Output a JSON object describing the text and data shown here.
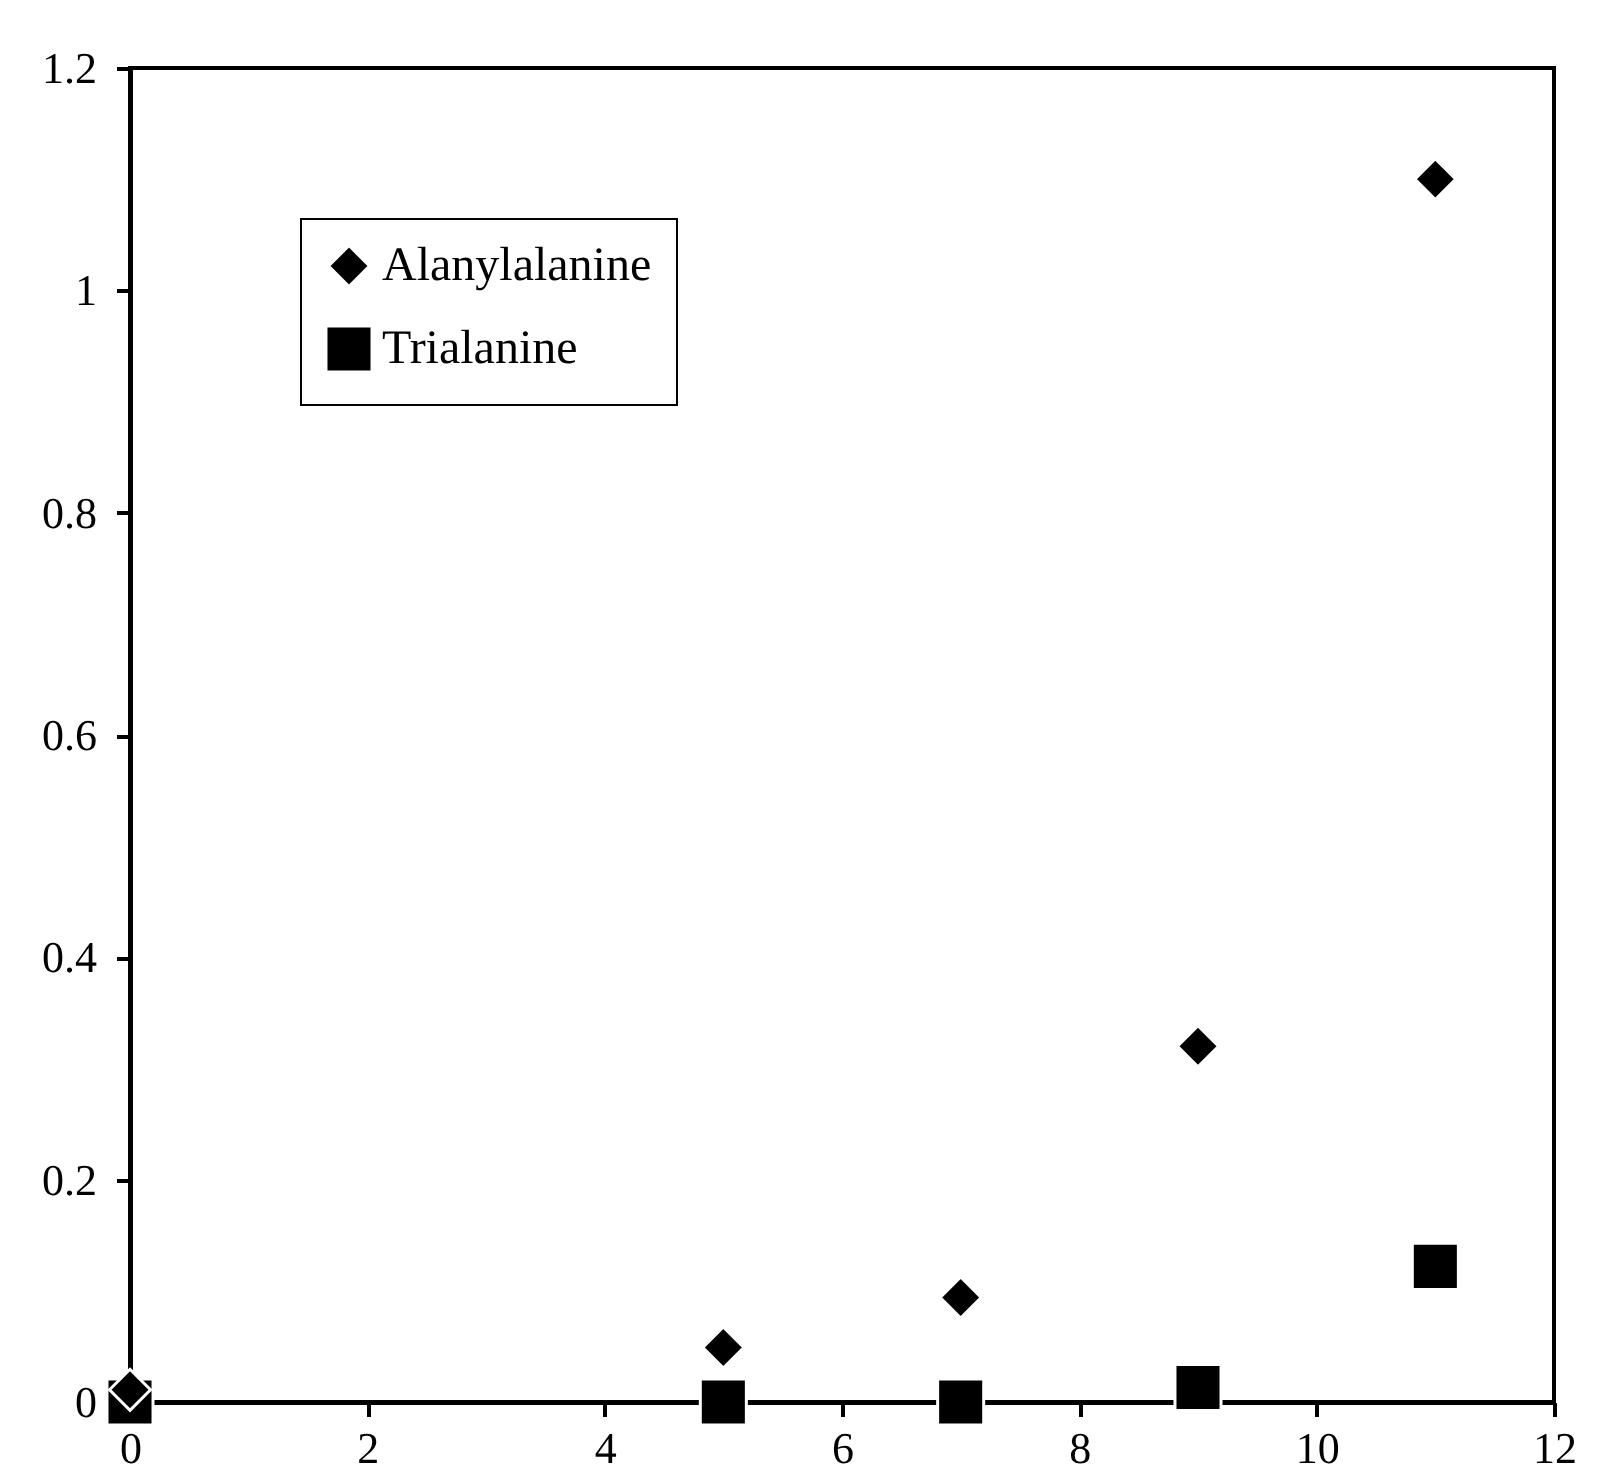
{
  "chart_data": {
    "type": "scatter",
    "x": [
      0,
      5,
      7,
      9,
      11
    ],
    "series": [
      {
        "name": "Alanylalanine",
        "color": "#000000",
        "marker": "diamond",
        "values": [
          0.011,
          0.049,
          0.094,
          0.32,
          1.1
        ]
      },
      {
        "name": "Trialanine",
        "color": "#000000",
        "marker": "square",
        "values": [
          0,
          0,
          0,
          0.013,
          0.122
        ]
      }
    ],
    "xlim": [
      0,
      12
    ],
    "xticks": [
      0,
      2,
      4,
      6,
      8,
      10,
      12
    ],
    "ylim": [
      0,
      1.2
    ],
    "yticks": [
      0,
      0.2,
      0.4,
      0.6,
      0.8,
      1,
      1.2
    ],
    "grid": false,
    "legend": "top left"
  }
}
